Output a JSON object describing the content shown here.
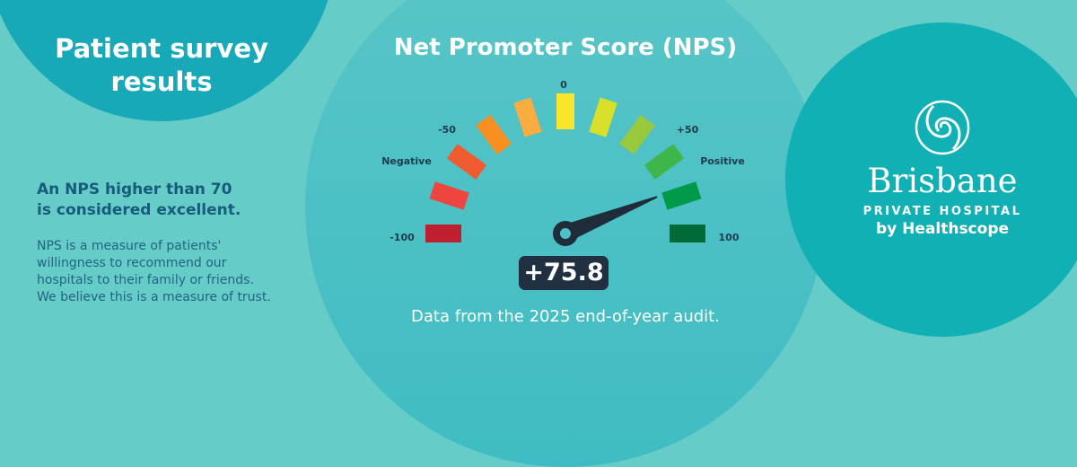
{
  "left": {
    "title": "Patient survey results",
    "headline_line1": "An NPS higher than 70",
    "headline_line2": "is considered excellent.",
    "description": "NPS is a measure of patients'\nwillingness to recommend our\nhospitals to  their family or friends.\nWe believe this is a measure of trust."
  },
  "center": {
    "title": "Net Promoter Score (NPS)",
    "score_label": "+75.8",
    "footnote": "Data from the 2025 end-of-year audit."
  },
  "gauge": {
    "value": 75.8,
    "min": -100,
    "max": 100,
    "tick_labels": {
      "min": "-100",
      "minus50": "-50",
      "zero": "0",
      "plus50": "+50",
      "max": "100"
    },
    "negative_label": "Negative",
    "positive_label": "Positive",
    "segment_colors": [
      "#c01f30",
      "#ee4540",
      "#ef5a2f",
      "#f7901e",
      "#fbac40",
      "#f9e52c",
      "#d9e02a",
      "#98c83c",
      "#3fb64a",
      "#009a4a",
      "#006b37"
    ],
    "needle_color": "#1f2d3a"
  },
  "logo": {
    "brand": "Brisbane",
    "subtitle": "PRIVATE HOSPITAL",
    "tagline": "by Healthscope"
  },
  "colors": {
    "background": "#66ccc8",
    "dark_teal": "#17a9b7",
    "brand_teal": "#10b0b4",
    "navy_text": "#155c7a"
  }
}
